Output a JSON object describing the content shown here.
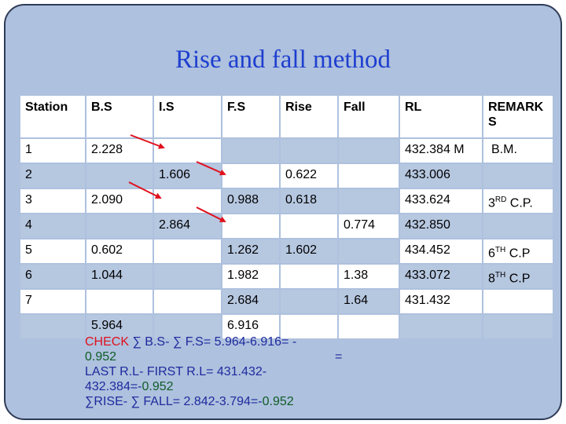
{
  "title": "Rise and fall method",
  "table": {
    "headers": [
      "Station",
      "B.S",
      "I.S",
      "F.S",
      "Rise",
      "Fall",
      "RL",
      "REMARK S"
    ],
    "rows": [
      [
        "1",
        "2.228",
        "",
        "",
        "",
        "",
        "432.384 M",
        "B.M."
      ],
      [
        "2",
        "",
        "1.606",
        "",
        "0.622",
        "",
        "433.006",
        ""
      ],
      [
        "3",
        "2.090",
        "",
        "0.988",
        "0.618",
        "",
        "433.624",
        "3RD C.P."
      ],
      [
        "4",
        "",
        "2.864",
        "",
        "",
        "0.774",
        "432.850",
        ""
      ],
      [
        "5",
        "0.602",
        "",
        "1.262",
        "1.602",
        "",
        "434.452",
        "6TH C.P"
      ],
      [
        "6",
        "1.044",
        "",
        "1.982",
        "",
        "1.38",
        "433.072",
        "8TH C.P"
      ],
      [
        "7",
        "",
        "",
        "2.684",
        "",
        "1.64",
        "431.432",
        ""
      ],
      [
        "",
        "5.964",
        "",
        "6.916",
        "",
        "",
        "",
        ""
      ]
    ],
    "remark_parts": {
      "r3": {
        "num": "3",
        "sup": "RD",
        "rest": " C.P."
      },
      "r5": {
        "num": "6",
        "sup": "TH",
        "rest": " C.P"
      },
      "r6": {
        "num": "8",
        "sup": "TH",
        "rest": " C.P"
      }
    }
  },
  "check": {
    "line1_label": "CHECK ",
    "line1_eq": "∑ B.S- ∑ F.S= 5.964-6.916= -",
    "line2": "0.952",
    "line3a": "LAST R.L- FIRST R.L= 431.432-",
    "line3b": "432.384=-",
    "line3b_val": "0.952",
    "line4": "∑RISE- ∑ FALL= 2.842-3.794=-",
    "line4_val": "0.952",
    "equals": "="
  },
  "colors": {
    "background": "#aec1de",
    "title": "#1f3fcf",
    "check_label": "#e0101c",
    "arrow": "#e0101c"
  }
}
